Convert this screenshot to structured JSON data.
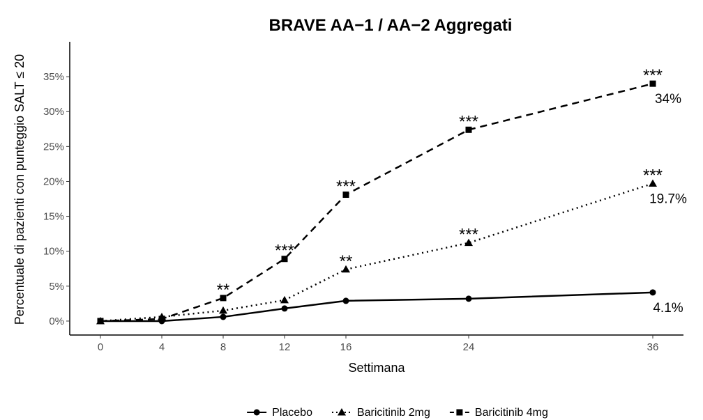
{
  "chart_data": {
    "type": "line",
    "title": "BRAVE AA−1 / AA−2 Aggregati",
    "x_label": "Settimana",
    "y_label": "Percentuale di pazienti con punteggio SALT ≤ 20",
    "x": [
      0,
      4,
      8,
      12,
      16,
      24,
      36
    ],
    "xlim": [
      -2,
      38
    ],
    "xticks": [
      0,
      4,
      8,
      12,
      16,
      24,
      36
    ],
    "ylim": [
      -2,
      40
    ],
    "yticks": [
      {
        "value": 0,
        "label": "0%"
      },
      {
        "value": 5,
        "label": "5%"
      },
      {
        "value": 10,
        "label": "10%"
      },
      {
        "value": 15,
        "label": "15%"
      },
      {
        "value": 20,
        "label": "20%"
      },
      {
        "value": 25,
        "label": "25%"
      },
      {
        "value": 30,
        "label": "30%"
      },
      {
        "value": 35,
        "label": "35%"
      }
    ],
    "legend": "bottom",
    "series": [
      {
        "name": "Placebo",
        "color": "#000000",
        "dash": "solid",
        "marker": "circle",
        "values": [
          0,
          0,
          0.6,
          1.8,
          2.9,
          3.2,
          4.1
        ],
        "value_labels": [
          null,
          null,
          null,
          null,
          null,
          null,
          "4.1%"
        ],
        "significance": [
          null,
          null,
          null,
          null,
          null,
          null,
          null
        ]
      },
      {
        "name": "Baricitinib 2mg",
        "color": "#000000",
        "dash": "dotted",
        "marker": "triangle",
        "values": [
          0,
          0.6,
          1.5,
          3.0,
          7.4,
          11.2,
          19.7
        ],
        "value_labels": [
          null,
          null,
          null,
          null,
          null,
          null,
          "19.7%"
        ],
        "significance": [
          null,
          null,
          null,
          null,
          "**",
          "***",
          "***"
        ]
      },
      {
        "name": "Baricitinib 4mg",
        "color": "#000000",
        "dash": "dashed",
        "marker": "square",
        "values": [
          0,
          0.3,
          3.3,
          8.9,
          18.1,
          27.4,
          34
        ],
        "value_labels": [
          null,
          null,
          null,
          null,
          null,
          null,
          "34%"
        ],
        "significance": [
          null,
          null,
          "**",
          "***",
          "***",
          "***",
          "***"
        ]
      }
    ]
  }
}
